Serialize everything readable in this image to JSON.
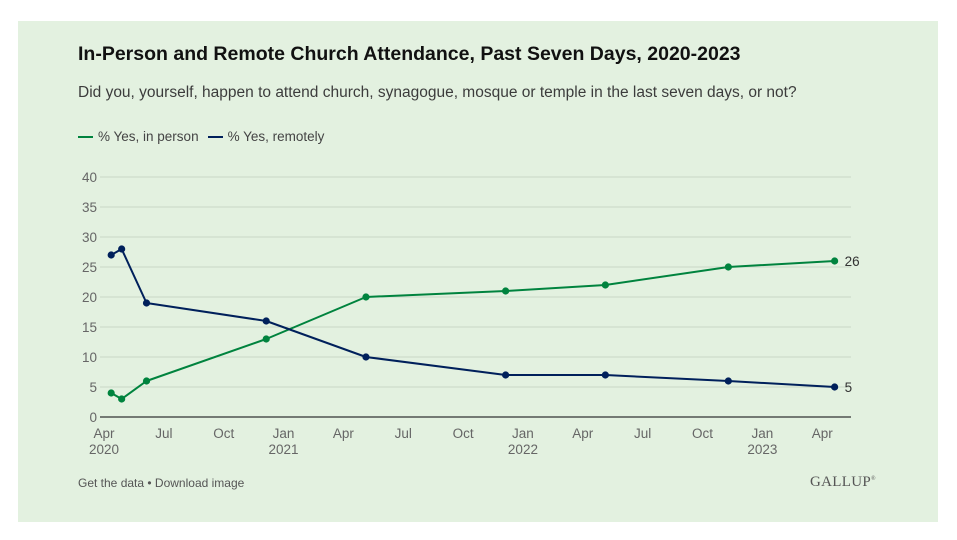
{
  "header": {
    "title": "In-Person and Remote Church Attendance, Past Seven Days, 2020-2023",
    "subtitle": "Did you, yourself, happen to attend church, synagogue, mosque or temple in the last seven days, or not?"
  },
  "legend": [
    {
      "label": "% Yes, in person",
      "color": "#00833e"
    },
    {
      "label": "% Yes, remotely",
      "color": "#00205b"
    }
  ],
  "footer": {
    "get_data": "Get the data",
    "separator": " • ",
    "download": "Download image",
    "logo": "GALLUP",
    "logo_mark": "®"
  },
  "chart_data": {
    "type": "line",
    "title": "In-Person and Remote Church Attendance, Past Seven Days, 2020-2023",
    "subtitle": "Did you, yourself, happen to attend church, synagogue, mosque or temple in the last seven days, or not?",
    "xlabel": "",
    "ylabel": "",
    "ylim": [
      0,
      40
    ],
    "yticks": [
      0,
      5,
      10,
      15,
      20,
      25,
      30,
      35,
      40
    ],
    "grid": true,
    "legend_position": "top-left",
    "xlim": [
      "2020-04",
      "2023-05"
    ],
    "xticks": [
      {
        "date": "2020-04",
        "label": "Apr",
        "year": "2020"
      },
      {
        "date": "2020-07",
        "label": "Jul",
        "year": ""
      },
      {
        "date": "2020-10",
        "label": "Oct",
        "year": ""
      },
      {
        "date": "2021-01",
        "label": "Jan",
        "year": "2021"
      },
      {
        "date": "2021-04",
        "label": "Apr",
        "year": ""
      },
      {
        "date": "2021-07",
        "label": "Jul",
        "year": ""
      },
      {
        "date": "2021-10",
        "label": "Oct",
        "year": ""
      },
      {
        "date": "2022-01",
        "label": "Jan",
        "year": "2022"
      },
      {
        "date": "2022-04",
        "label": "Apr",
        "year": ""
      },
      {
        "date": "2022-07",
        "label": "Jul",
        "year": ""
      },
      {
        "date": "2022-10",
        "label": "Oct",
        "year": ""
      },
      {
        "date": "2023-01",
        "label": "Jan",
        "year": "2023"
      },
      {
        "date": "2023-04",
        "label": "Apr",
        "year": ""
      }
    ],
    "x": [
      "2020-04-12",
      "2020-04-28",
      "2020-06-05",
      "2020-12-05",
      "2021-05-05",
      "2021-12-05",
      "2022-05-05",
      "2022-11-10",
      "2023-04-20"
    ],
    "series": [
      {
        "name": "% Yes, in person",
        "color": "#00833e",
        "values": [
          4,
          3,
          6,
          13,
          20,
          21,
          22,
          25,
          26
        ],
        "end_label": "26"
      },
      {
        "name": "% Yes, remotely",
        "color": "#00205b",
        "values": [
          27,
          28,
          19,
          16,
          10,
          7,
          7,
          6,
          5
        ],
        "end_label": "5"
      }
    ]
  }
}
